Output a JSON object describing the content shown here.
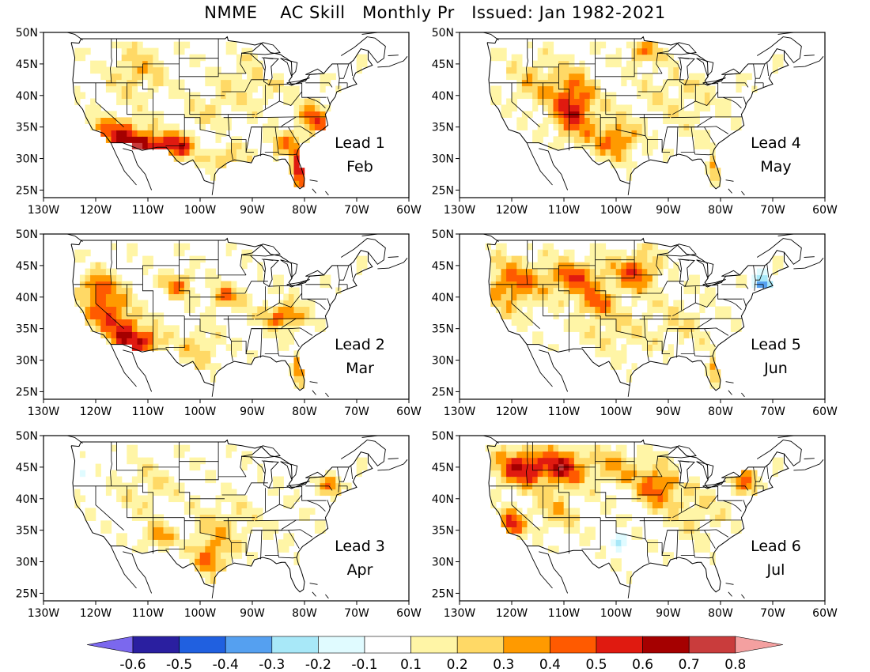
{
  "title": "NMME    AC Skill   Monthly Pr   Issued: Jan 1982-2021",
  "lon_ticks": [
    "130W",
    "120W",
    "110W",
    "100W",
    "90W",
    "80W",
    "70W",
    "60W"
  ],
  "lat_ticks": [
    "50N",
    "45N",
    "40N",
    "35N",
    "30N",
    "25N"
  ],
  "panels": [
    {
      "lead": "Lead 1",
      "month": "Feb",
      "blobs": [
        [
          -116,
          34,
          5,
          2.5,
          0.45
        ],
        [
          -110,
          32,
          5,
          2.2,
          0.55
        ],
        [
          -104,
          32,
          3,
          2,
          0.4
        ],
        [
          -81,
          28,
          1.5,
          3,
          0.65
        ],
        [
          -78,
          36,
          3,
          3,
          0.4
        ],
        [
          -84,
          32,
          3,
          2,
          0.3
        ],
        [
          -95,
          30,
          4,
          2,
          0.25
        ],
        [
          -112,
          44,
          5,
          4,
          0.22
        ],
        [
          -90,
          42,
          6,
          4,
          0.15
        ],
        [
          -98,
          38,
          5,
          3,
          0.12
        ]
      ]
    },
    {
      "lead": "Lead 4",
      "month": "May",
      "blobs": [
        [
          -108,
          38,
          4,
          5,
          0.5
        ],
        [
          -100,
          33,
          4,
          3,
          0.38
        ],
        [
          -81,
          28,
          1.5,
          2.5,
          0.35
        ],
        [
          -95,
          47,
          3,
          2,
          0.3
        ],
        [
          -115,
          42,
          6,
          4,
          0.18
        ],
        [
          -88,
          40,
          8,
          6,
          0.12
        ]
      ]
    },
    {
      "lead": "Lead 2",
      "month": "Mar",
      "blobs": [
        [
          -118,
          38,
          4,
          4,
          0.42
        ],
        [
          -114,
          34,
          3,
          3,
          0.45
        ],
        [
          -110,
          33,
          3,
          2,
          0.42
        ],
        [
          -104,
          42,
          3,
          2,
          0.32
        ],
        [
          -95,
          40,
          3,
          2,
          0.35
        ],
        [
          -84,
          37,
          4,
          2,
          0.42
        ],
        [
          -81,
          28,
          1.5,
          2.5,
          0.4
        ],
        [
          -100,
          32,
          4,
          3,
          0.2
        ],
        [
          -120,
          42,
          3,
          2,
          0.3
        ]
      ]
    },
    {
      "lead": "Lead 5",
      "month": "Jun",
      "blobs": [
        [
          -120,
          42,
          5,
          4,
          0.38
        ],
        [
          -108,
          43,
          6,
          3,
          0.4
        ],
        [
          -96,
          44,
          4,
          3,
          0.42
        ],
        [
          -104,
          39,
          3,
          2,
          0.32
        ],
        [
          -81,
          28,
          1.5,
          2.5,
          0.35
        ],
        [
          -72,
          42,
          2,
          1.5,
          -0.42
        ],
        [
          -100,
          35,
          6,
          4,
          0.15
        ],
        [
          -88,
          36,
          6,
          4,
          0.12
        ]
      ]
    },
    {
      "lead": "Lead 3",
      "month": "Apr",
      "blobs": [
        [
          -98,
          31,
          3,
          3,
          0.38
        ],
        [
          -108,
          34,
          3,
          2,
          0.3
        ],
        [
          -75,
          42,
          3,
          2,
          0.28
        ],
        [
          -95,
          36,
          6,
          4,
          0.15
        ],
        [
          -110,
          42,
          6,
          4,
          0.12
        ],
        [
          -122,
          45,
          2,
          2,
          -0.12
        ]
      ]
    },
    {
      "lead": "Lead 6",
      "month": "Jul",
      "blobs": [
        [
          -118,
          45,
          5,
          3,
          0.55
        ],
        [
          -110,
          45,
          4,
          3,
          0.5
        ],
        [
          -120,
          36,
          2,
          2,
          0.55
        ],
        [
          -92,
          42,
          4,
          3,
          0.4
        ],
        [
          -75,
          43,
          3,
          2,
          0.35
        ],
        [
          -100,
          45,
          5,
          3,
          0.25
        ],
        [
          -100,
          33,
          3,
          2,
          -0.15
        ],
        [
          -85,
          38,
          6,
          4,
          0.15
        ],
        [
          -112,
          38,
          5,
          3,
          0.2
        ]
      ]
    }
  ],
  "colorbar": {
    "labels": [
      "-0.6",
      "-0.5",
      "-0.4",
      "-0.3",
      "-0.2",
      "-0.1",
      "0.1",
      "0.2",
      "0.3",
      "0.4",
      "0.5",
      "0.6",
      "0.7",
      "0.8"
    ],
    "low_color": "#7b68ee",
    "high_color": "#f4a0a0",
    "colors": [
      "#2a1fa0",
      "#2060e0",
      "#55a0f0",
      "#a8e8f8",
      "#e0fbff",
      "#ffffff",
      "#fff5a6",
      "#ffd966",
      "#ff9a00",
      "#ff5a00",
      "#e01a10",
      "#a50000",
      "#c93c3c"
    ]
  }
}
